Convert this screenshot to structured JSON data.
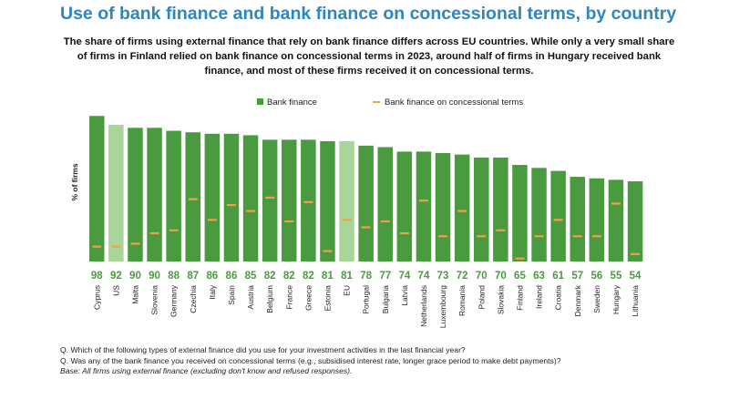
{
  "title": "Use of bank finance and bank finance on concessional terms, by country",
  "subtitle": "The share of firms using external finance that rely on bank finance differs across EU countries. While only a very small share of firms in Finland relied on bank finance on concessional terms in 2023, around half of firms in Hungary received bank finance, and most of these firms received it on concessional terms.",
  "notes": {
    "q1": "Q. Which of the following types of external finance did you use for your investment activities in the last financial year?",
    "q2": "Q. Was any of the bank finance you received on concessional terms (e.g., subsidised interest rate, longer grace period to make debt payments)?",
    "base": "Base: All firms using external finance (excluding don't know and refused responses)."
  },
  "colors": {
    "bar": "#4a9a3f",
    "bar_highlight": "#a9d49a",
    "concessional": "#f0a04b",
    "value_label": "#4a9a3f"
  },
  "chart_data": {
    "type": "bar",
    "ylabel": "% of firms",
    "ylim": [
      0,
      100
    ],
    "grid": false,
    "legend_position": "top-center",
    "categories": [
      "Cyprus",
      "US",
      "Malta",
      "Slovenia",
      "Germany",
      "Czechia",
      "Italy",
      "Spain",
      "Austria",
      "Belgium",
      "France",
      "Greece",
      "Estonia",
      "EU",
      "Portugal",
      "Bulgaria",
      "Latvia",
      "Netherlands",
      "Luxembourg",
      "Romania",
      "Poland",
      "Slovakia",
      "Finland",
      "Ireland",
      "Croatia",
      "Denmark",
      "Sweden",
      "Hungary",
      "Lithuania"
    ],
    "highlighted": [
      "US",
      "EU"
    ],
    "series": [
      {
        "name": "Bank finance",
        "values": [
          98,
          92,
          90,
          90,
          88,
          87,
          86,
          86,
          85,
          82,
          82,
          82,
          81,
          81,
          78,
          77,
          74,
          74,
          73,
          72,
          70,
          70,
          65,
          63,
          61,
          57,
          56,
          55,
          54
        ]
      },
      {
        "name": "Bank finance on concessional terms",
        "values": [
          10,
          10,
          12,
          19,
          21,
          42,
          28,
          38,
          34,
          43,
          27,
          40,
          7,
          28,
          23,
          27,
          19,
          41,
          17,
          34,
          17,
          21,
          2,
          17,
          28,
          17,
          17,
          39,
          5
        ]
      }
    ]
  }
}
